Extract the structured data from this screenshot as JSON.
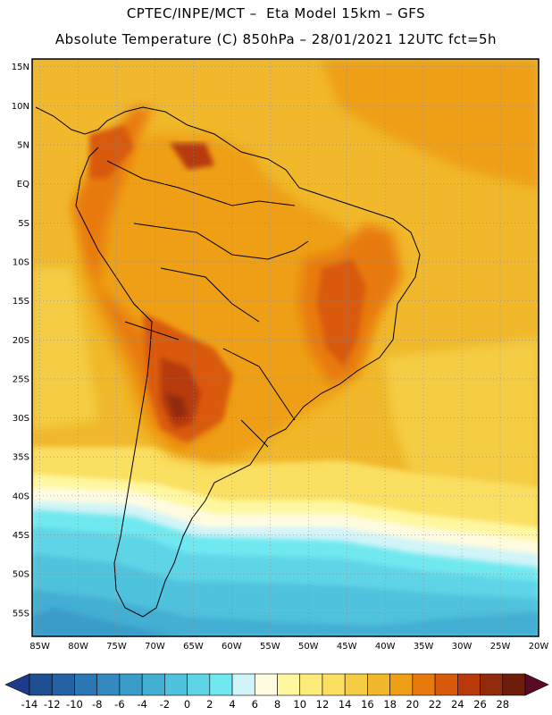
{
  "header": {
    "line1": "CPTEC/INPE/MCT –  Eta Model 15km – GFS",
    "line2": "Absolute Temperature (C) 850hPa – 28/01/2021 12UTC fct=5h"
  },
  "map": {
    "lat_labels": [
      "15N",
      "10N",
      "5N",
      "EQ",
      "5S",
      "10S",
      "15S",
      "20S",
      "25S",
      "30S",
      "35S",
      "40S",
      "45S",
      "50S",
      "55S"
    ],
    "lon_labels": [
      "85W",
      "80W",
      "75W",
      "70W",
      "65W",
      "60W",
      "55W",
      "50W",
      "45W",
      "40W",
      "35W",
      "30W",
      "25W",
      "20W"
    ],
    "lat_range": [
      -58,
      16
    ],
    "lon_range": [
      -86,
      -20
    ]
  },
  "colorbar": {
    "labels": [
      "-14",
      "-12",
      "-10",
      "-8",
      "-6",
      "-4",
      "-2",
      "0",
      "2",
      "4",
      "6",
      "8",
      "10",
      "12",
      "14",
      "16",
      "18",
      "20",
      "22",
      "24",
      "26",
      "28"
    ],
    "colors": [
      "#1d4f91",
      "#2462a3",
      "#2b76b4",
      "#3389c0",
      "#3a9cc9",
      "#43afd3",
      "#4fc2dd",
      "#5dd5e6",
      "#6fe8f0",
      "#d0f4f8",
      "#fffbe0",
      "#fef7a0",
      "#fdec7a",
      "#fadf60",
      "#f5cd45",
      "#f0b82a",
      "#ee9f15",
      "#e87a0d",
      "#d95a0b",
      "#b83a0b",
      "#922a0c",
      "#6e1c0c"
    ],
    "under_color": "#1e3a8a",
    "over_color": "#5a0a25"
  }
}
